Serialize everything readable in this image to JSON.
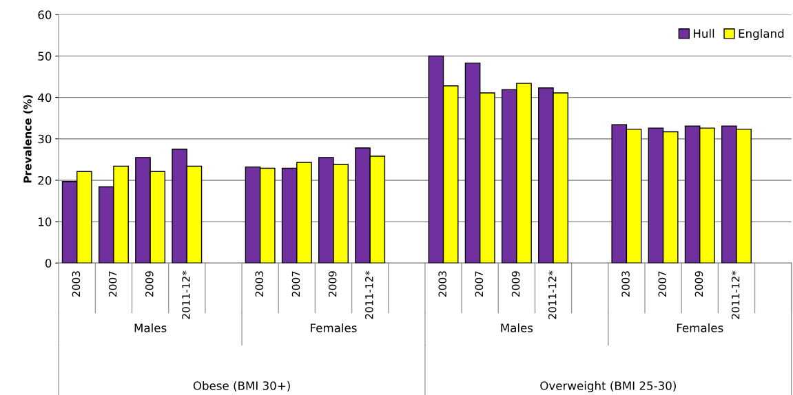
{
  "chart_data": {
    "type": "bar",
    "ylabel": "Prevalence (%)",
    "categories": [
      "2003",
      "2007",
      "2009",
      "2011-12*",
      null,
      "2003",
      "2007",
      "2009",
      "2011-12*",
      null,
      "2003",
      "2007",
      "2009",
      "2011-12*",
      null,
      "2003",
      "2007",
      "2009",
      "2011-12*",
      null
    ],
    "series": [
      {
        "name": "Hull",
        "color": "#7030a0",
        "values": [
          19.7,
          18.4,
          25.5,
          27.5,
          null,
          23.2,
          22.9,
          25.5,
          27.8,
          null,
          50.0,
          48.3,
          41.9,
          42.3,
          null,
          33.4,
          32.6,
          33.1,
          33.1,
          null
        ]
      },
      {
        "name": "England",
        "color": "#ffff00",
        "values": [
          22.1,
          23.4,
          22.1,
          23.4,
          null,
          22.9,
          24.3,
          23.8,
          25.8,
          null,
          42.8,
          41.1,
          43.4,
          41.1,
          null,
          32.3,
          31.7,
          32.6,
          32.3,
          null
        ]
      }
    ],
    "annotations": [
      "Males",
      "Females",
      "Males",
      "Females",
      "Obese (BMI 30+)",
      "Overweight (BMI 25-30)"
    ],
    "ylim": [
      0,
      60
    ],
    "yticks": [
      0,
      10,
      20,
      30,
      40,
      50,
      60
    ],
    "grid": "y",
    "legend": "top right"
  }
}
